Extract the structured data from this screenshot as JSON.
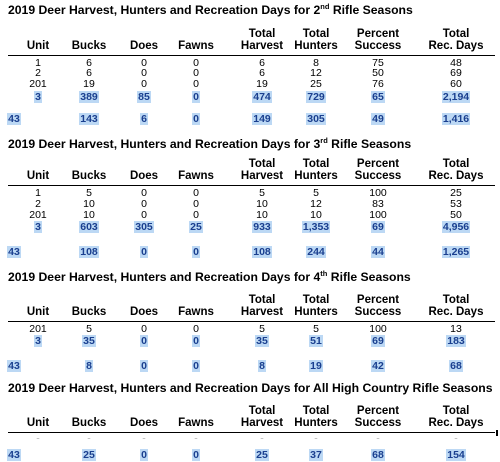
{
  "columns": [
    "Unit",
    "Bucks",
    "Does",
    "Fawns",
    "Total Harvest",
    "Total Hunters",
    "Percent Success",
    "Total Rec. Days"
  ],
  "sections": [
    {
      "title_prefix": "2019 Deer Harvest, Hunters and Recreation Days for 2",
      "title_sup": "nd",
      "title_suffix": " Rifle Seasons",
      "rows": [
        [
          "1",
          "6",
          "0",
          "0",
          "6",
          "8",
          "75",
          "48"
        ],
        [
          "2",
          "6",
          "0",
          "0",
          "6",
          "12",
          "50",
          "69"
        ],
        [
          "201",
          "19",
          "0",
          "0",
          "19",
          "25",
          "76",
          "60"
        ],
        [
          "3",
          "389",
          "85",
          "0",
          "474",
          "729",
          "65",
          "2,194"
        ]
      ],
      "extra": [
        "43",
        "143",
        "6",
        "0",
        "149",
        "305",
        "49",
        "1,416"
      ]
    },
    {
      "title_prefix": "2019 Deer Harvest, Hunters and Recreation Days for 3",
      "title_sup": "rd",
      "title_suffix": " Rifle Seasons",
      "rows": [
        [
          "1",
          "5",
          "0",
          "0",
          "5",
          "5",
          "100",
          "25"
        ],
        [
          "2",
          "10",
          "0",
          "0",
          "10",
          "12",
          "83",
          "53"
        ],
        [
          "201",
          "10",
          "0",
          "0",
          "10",
          "10",
          "100",
          "50"
        ],
        [
          "3",
          "603",
          "305",
          "25",
          "933",
          "1,353",
          "69",
          "4,956"
        ]
      ],
      "extra": [
        "43",
        "108",
        "0",
        "0",
        "108",
        "244",
        "44",
        "1,265"
      ]
    },
    {
      "title_prefix": "2019 Deer Harvest, Hunters and Recreation Days for 4",
      "title_sup": "th",
      "title_suffix": " Rifle Seasons",
      "rows": [
        [
          "201",
          "5",
          "0",
          "0",
          "5",
          "5",
          "100",
          "13"
        ],
        [
          "3",
          "35",
          "0",
          "0",
          "35",
          "51",
          "69",
          "183"
        ]
      ],
      "extra": [
        "43",
        "8",
        "0",
        "0",
        "8",
        "19",
        "42",
        "68"
      ]
    },
    {
      "title_prefix": "2019 Deer Harvest, Hunters and Recreation Days for All High Country Rifle Seasons",
      "title_sup": "",
      "title_suffix": "",
      "rows": [],
      "extra": [
        "43",
        "25",
        "0",
        "0",
        "25",
        "37",
        "68",
        "154"
      ]
    }
  ]
}
